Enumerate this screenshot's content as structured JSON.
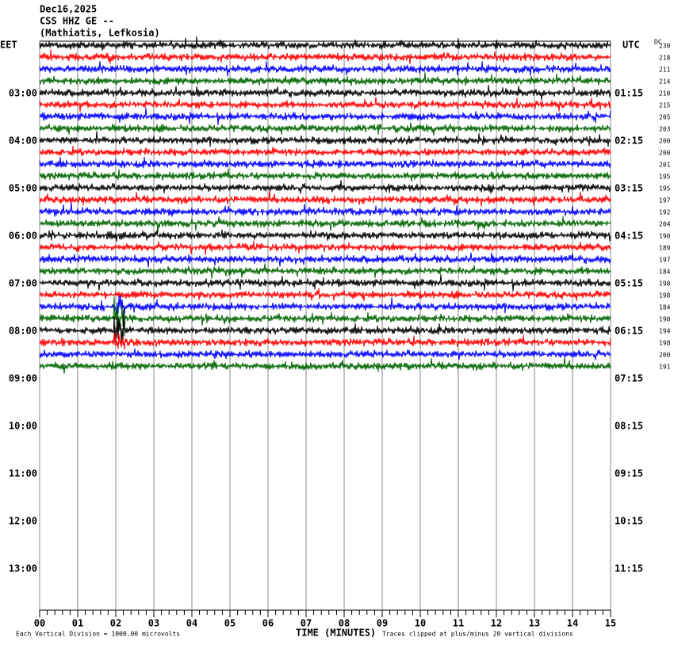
{
  "header": {
    "date": "Dec16,2025",
    "station": "CSS HHZ GE --",
    "location": "(Mathiatis, Lefkosia)"
  },
  "left_axis": {
    "title": "EET",
    "labels": [
      "03:00",
      "04:00",
      "05:00",
      "06:00",
      "07:00",
      "08:00",
      "09:00",
      "10:00",
      "11:00",
      "12:00",
      "13:00"
    ]
  },
  "right_axis": {
    "title": "UTC",
    "dc_title": "DC",
    "labels": [
      "01:15",
      "02:15",
      "03:15",
      "04:15",
      "05:15",
      "06:15",
      "07:15",
      "08:15",
      "09:15",
      "10:15",
      "11:15"
    ]
  },
  "dc_values": [
    230,
    218,
    211,
    214,
    210,
    215,
    205,
    203,
    200,
    200,
    201,
    195,
    195,
    197,
    192,
    204,
    190,
    189,
    197,
    184,
    198,
    198,
    184,
    190,
    194,
    198,
    200,
    191
  ],
  "x_axis": {
    "title": "TIME (MINUTES)",
    "labels": [
      "00",
      "01",
      "02",
      "03",
      "04",
      "05",
      "06",
      "07",
      "08",
      "09",
      "10",
      "11",
      "12",
      "13",
      "14",
      "15"
    ]
  },
  "footer": {
    "scale": "Each Vertical Division = 1000.00 microvolts",
    "clip": "Traces clipped at plus/minus 20 vertical divisions"
  },
  "trace_colors": [
    "#000000",
    "#ff0000",
    "#0000ff",
    "#006400"
  ]
}
